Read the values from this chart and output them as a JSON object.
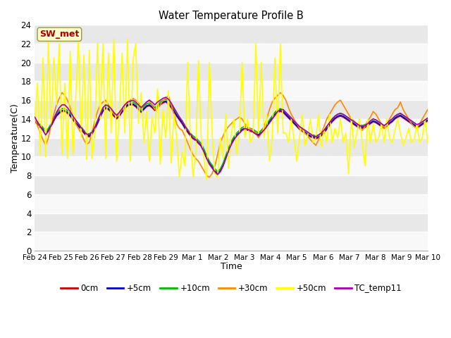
{
  "title": "Water Temperature Profile B",
  "xlabel": "Time",
  "ylabel": "Temperature(C)",
  "ylim": [
    0,
    24
  ],
  "yticks": [
    0,
    2,
    4,
    6,
    8,
    10,
    12,
    14,
    16,
    18,
    20,
    22,
    24
  ],
  "xtick_labels": [
    "Feb 24",
    "Feb 25",
    "Feb 26",
    "Feb 27",
    "Feb 28",
    "Feb 29",
    "Mar 1",
    "Mar 2",
    "Mar 3",
    "Mar 4",
    "Mar 5",
    "Mar 6",
    "Mar 7",
    "Mar 8",
    "Mar 9",
    "Mar 10"
  ],
  "fig_bg_color": "#ffffff",
  "plot_bg_color": "#e8e8e8",
  "alt_band_color": "#f8f8f8",
  "series_colors": {
    "0cm": "#cc0000",
    "+5cm": "#0000cc",
    "+10cm": "#00bb00",
    "+30cm": "#ff8800",
    "+50cm": "#ffff00",
    "TC_temp11": "#aa00aa"
  },
  "sw_met_label": "SW_met",
  "sw_met_color": "#aa0000",
  "sw_met_bg": "#ffffcc",
  "sw_met_edge": "#999944",
  "legend_labels": [
    "0cm",
    "+5cm",
    "+10cm",
    "+30cm",
    "+50cm",
    "TC_temp11"
  ],
  "n_points": 145,
  "0cm": [
    13.8,
    13.4,
    13.1,
    12.8,
    12.4,
    12.7,
    13.2,
    13.8,
    14.3,
    14.6,
    14.8,
    14.8,
    14.6,
    14.3,
    13.9,
    13.5,
    13.2,
    12.9,
    12.5,
    12.2,
    12.1,
    12.4,
    12.9,
    13.5,
    14.2,
    14.8,
    15.1,
    15.0,
    14.7,
    14.3,
    14.0,
    14.3,
    14.7,
    15.1,
    15.4,
    15.5,
    15.5,
    15.3,
    15.0,
    14.7,
    15.0,
    15.3,
    15.4,
    15.2,
    14.9,
    15.2,
    15.5,
    15.7,
    15.8,
    15.6,
    15.2,
    14.8,
    14.3,
    13.9,
    13.5,
    13.0,
    12.6,
    12.2,
    11.9,
    11.7,
    11.4,
    11.1,
    10.5,
    9.8,
    9.2,
    8.8,
    8.4,
    8.1,
    8.4,
    9.0,
    9.8,
    10.6,
    11.3,
    11.8,
    12.2,
    12.5,
    12.8,
    12.9,
    12.8,
    12.7,
    12.6,
    12.4,
    12.2,
    12.5,
    12.8,
    13.2,
    13.6,
    14.0,
    14.4,
    14.7,
    14.8,
    14.7,
    14.4,
    14.1,
    13.8,
    13.5,
    13.2,
    12.9,
    12.7,
    12.5,
    12.3,
    12.1,
    12.0,
    11.9,
    12.0,
    12.2,
    12.5,
    12.9,
    13.3,
    13.7,
    14.0,
    14.2,
    14.3,
    14.2,
    14.0,
    13.8,
    13.6,
    13.4,
    13.2,
    13.1,
    13.0,
    13.1,
    13.3,
    13.5,
    13.7,
    13.6,
    13.4,
    13.2,
    13.0,
    13.2,
    13.5,
    13.7,
    14.0,
    14.2,
    14.3,
    14.1,
    13.9,
    13.7,
    13.5,
    13.3,
    13.1,
    13.2,
    13.4,
    13.6,
    13.8
  ],
  "+5cm": [
    13.9,
    13.5,
    13.2,
    12.9,
    12.5,
    12.8,
    13.3,
    13.9,
    14.4,
    14.7,
    14.9,
    14.9,
    14.7,
    14.4,
    14.0,
    13.6,
    13.3,
    13.0,
    12.6,
    12.3,
    12.2,
    12.5,
    13.0,
    13.6,
    14.3,
    14.9,
    15.2,
    15.1,
    14.8,
    14.4,
    14.1,
    14.4,
    14.8,
    15.2,
    15.5,
    15.6,
    15.6,
    15.4,
    15.1,
    14.8,
    15.1,
    15.4,
    15.5,
    15.3,
    15.0,
    15.3,
    15.6,
    15.8,
    15.9,
    15.7,
    15.3,
    14.9,
    14.4,
    14.0,
    13.6,
    13.1,
    12.7,
    12.3,
    12.0,
    11.8,
    11.5,
    11.2,
    10.6,
    9.9,
    9.3,
    8.9,
    8.5,
    8.2,
    8.5,
    9.1,
    9.9,
    10.7,
    11.4,
    11.9,
    12.3,
    12.6,
    12.9,
    13.0,
    12.9,
    12.8,
    12.7,
    12.5,
    12.3,
    12.6,
    12.9,
    13.3,
    13.7,
    14.1,
    14.5,
    14.8,
    14.9,
    14.8,
    14.5,
    14.2,
    13.9,
    13.6,
    13.3,
    13.0,
    12.8,
    12.6,
    12.4,
    12.2,
    12.1,
    12.0,
    12.1,
    12.3,
    12.6,
    13.0,
    13.4,
    13.8,
    14.1,
    14.3,
    14.4,
    14.3,
    14.1,
    13.9,
    13.7,
    13.5,
    13.3,
    13.2,
    13.1,
    13.2,
    13.4,
    13.6,
    13.8,
    13.7,
    13.5,
    13.3,
    13.1,
    13.3,
    13.6,
    13.8,
    14.1,
    14.3,
    14.4,
    14.2,
    14.0,
    13.8,
    13.6,
    13.4,
    13.2,
    13.3,
    13.5,
    13.7,
    13.9
  ],
  "+10cm": [
    14.0,
    13.7,
    13.4,
    13.1,
    12.7,
    13.0,
    13.5,
    14.1,
    14.6,
    14.9,
    15.1,
    15.1,
    14.9,
    14.6,
    14.2,
    13.8,
    13.5,
    13.2,
    12.8,
    12.5,
    12.4,
    12.7,
    13.2,
    13.8,
    14.5,
    15.1,
    15.4,
    15.3,
    15.0,
    14.6,
    14.3,
    14.6,
    15.0,
    15.4,
    15.7,
    15.8,
    15.8,
    15.6,
    15.3,
    15.0,
    15.3,
    15.6,
    15.7,
    15.5,
    15.2,
    15.5,
    15.8,
    16.0,
    16.1,
    15.9,
    15.5,
    15.1,
    14.6,
    14.2,
    13.8,
    13.3,
    12.9,
    12.5,
    12.2,
    12.0,
    11.7,
    11.4,
    10.8,
    10.1,
    9.5,
    9.1,
    8.7,
    8.4,
    8.7,
    9.3,
    10.1,
    10.9,
    11.6,
    12.1,
    12.5,
    12.8,
    13.1,
    13.2,
    13.1,
    13.0,
    12.9,
    12.7,
    12.5,
    12.8,
    13.1,
    13.5,
    13.9,
    14.3,
    14.7,
    15.0,
    15.1,
    15.0,
    14.7,
    14.4,
    14.1,
    13.8,
    13.5,
    13.2,
    13.0,
    12.8,
    12.6,
    12.4,
    12.3,
    12.2,
    12.3,
    12.5,
    12.8,
    13.2,
    13.6,
    14.0,
    14.3,
    14.5,
    14.6,
    14.5,
    14.3,
    14.1,
    13.9,
    13.7,
    13.5,
    13.4,
    13.3,
    13.4,
    13.6,
    13.8,
    14.0,
    13.9,
    13.7,
    13.5,
    13.3,
    13.5,
    13.8,
    14.0,
    14.3,
    14.5,
    14.6,
    14.4,
    14.2,
    14.0,
    13.8,
    13.6,
    13.4,
    13.5,
    13.7,
    13.9,
    14.1
  ],
  "+30cm": [
    14.2,
    13.3,
    12.5,
    11.8,
    11.2,
    12.0,
    13.3,
    14.5,
    15.5,
    16.2,
    16.8,
    16.5,
    16.0,
    15.2,
    14.3,
    13.5,
    13.0,
    12.5,
    11.8,
    11.3,
    11.5,
    12.5,
    13.8,
    14.8,
    15.5,
    15.8,
    16.0,
    15.5,
    15.0,
    14.5,
    14.2,
    14.5,
    15.0,
    15.5,
    15.8,
    16.0,
    16.2,
    16.0,
    15.7,
    15.3,
    15.5,
    15.8,
    16.0,
    15.5,
    15.0,
    15.2,
    15.5,
    16.0,
    16.2,
    16.5,
    15.5,
    14.5,
    13.5,
    13.0,
    12.8,
    12.2,
    11.5,
    10.8,
    10.2,
    9.8,
    9.5,
    9.0,
    8.5,
    8.0,
    7.8,
    8.2,
    9.0,
    10.2,
    11.5,
    12.2,
    12.8,
    13.2,
    13.5,
    13.8,
    14.0,
    14.2,
    14.0,
    13.5,
    13.0,
    13.0,
    12.8,
    12.5,
    12.0,
    12.5,
    13.2,
    14.0,
    15.0,
    15.8,
    16.2,
    16.5,
    16.8,
    16.5,
    16.0,
    15.2,
    14.5,
    14.0,
    13.5,
    13.0,
    12.8,
    12.5,
    12.2,
    11.8,
    11.5,
    11.2,
    11.8,
    12.5,
    13.2,
    14.0,
    14.5,
    15.0,
    15.5,
    15.8,
    16.0,
    15.5,
    15.0,
    14.5,
    14.0,
    13.8,
    13.5,
    13.0,
    12.8,
    13.2,
    13.8,
    14.2,
    14.8,
    14.5,
    14.0,
    13.5,
    13.0,
    13.5,
    14.0,
    14.5,
    15.0,
    15.2,
    15.8,
    15.0,
    14.5,
    14.0,
    13.5,
    13.2,
    13.0,
    13.5,
    14.0,
    14.5,
    15.0
  ],
  "+50cm": [
    13.5,
    17.8,
    10.2,
    20.5,
    10.0,
    22.3,
    13.0,
    20.5,
    15.5,
    22.0,
    10.2,
    17.8,
    9.8,
    21.2,
    10.2,
    16.0,
    22.5,
    12.0,
    20.8,
    9.7,
    21.3,
    9.8,
    12.5,
    22.0,
    14.0,
    22.0,
    9.8,
    21.0,
    12.5,
    22.5,
    9.5,
    14.5,
    21.0,
    12.5,
    22.5,
    9.5,
    20.2,
    22.0,
    13.5,
    16.8,
    11.5,
    14.8,
    9.5,
    14.2,
    12.5,
    17.2,
    9.2,
    15.0,
    12.0,
    17.0,
    9.3,
    14.5,
    12.0,
    7.8,
    10.5,
    9.0,
    20.0,
    12.5,
    7.8,
    10.5,
    20.2,
    12.0,
    9.8,
    7.5,
    20.0,
    12.5,
    8.2,
    7.8,
    12.0,
    9.8,
    14.5,
    8.8,
    12.5,
    14.0,
    10.2,
    12.5,
    20.0,
    12.0,
    14.0,
    11.5,
    12.2,
    22.0,
    12.5,
    20.0,
    12.0,
    14.5,
    9.5,
    12.0,
    20.5,
    12.5,
    22.0,
    12.5,
    12.5,
    11.5,
    14.0,
    11.8,
    9.5,
    12.0,
    14.5,
    11.2,
    12.2,
    14.0,
    11.5,
    12.0,
    14.5,
    11.0,
    13.0,
    11.5,
    14.5,
    11.5,
    13.0,
    12.0,
    14.0,
    11.5,
    12.5,
    8.2,
    14.2,
    11.0,
    12.5,
    14.0,
    11.5,
    9.0,
    14.0,
    11.5,
    13.5,
    11.5,
    12.0,
    13.5,
    11.5,
    14.0,
    12.0,
    11.5,
    12.8,
    14.0,
    12.5,
    11.2,
    12.0,
    13.0,
    11.5,
    11.8,
    13.5,
    11.5,
    12.0,
    14.0,
    11.5
  ],
  "TC_temp11": [
    14.2,
    13.7,
    13.2,
    12.8,
    12.3,
    12.7,
    13.3,
    14.0,
    14.7,
    15.2,
    15.5,
    15.5,
    15.2,
    14.8,
    14.3,
    13.9,
    13.5,
    13.1,
    12.7,
    12.4,
    12.3,
    12.6,
    13.1,
    13.8,
    14.5,
    15.2,
    15.5,
    15.4,
    15.1,
    14.7,
    14.4,
    14.7,
    15.1,
    15.5,
    15.8,
    15.9,
    16.0,
    15.8,
    15.5,
    15.2,
    15.5,
    15.8,
    16.0,
    15.8,
    15.5,
    15.8,
    16.0,
    16.2,
    16.3,
    16.1,
    15.7,
    15.2,
    14.7,
    14.2,
    13.8,
    13.3,
    12.8,
    12.4,
    12.0,
    11.8,
    11.5,
    11.1,
    10.5,
    9.8,
    9.2,
    8.8,
    8.4,
    8.1,
    8.4,
    9.0,
    9.8,
    10.6,
    11.3,
    11.8,
    12.2,
    12.5,
    12.8,
    13.0,
    12.9,
    12.8,
    12.6,
    12.4,
    12.2,
    12.5,
    12.8,
    13.2,
    13.6,
    14.0,
    14.4,
    14.8,
    15.0,
    15.0,
    14.7,
    14.4,
    14.1,
    13.8,
    13.5,
    13.2,
    13.0,
    12.8,
    12.6,
    12.4,
    12.2,
    12.1,
    12.3,
    12.5,
    12.8,
    13.2,
    13.6,
    14.0,
    14.3,
    14.5,
    14.6,
    14.5,
    14.3,
    14.1,
    13.9,
    13.7,
    13.5,
    13.3,
    13.2,
    13.3,
    13.5,
    13.8,
    14.0,
    13.9,
    13.7,
    13.5,
    13.3,
    13.5,
    13.8,
    14.0,
    14.3,
    14.5,
    14.6,
    14.4,
    14.2,
    14.0,
    13.8,
    13.6,
    13.4,
    13.5,
    13.7,
    13.9,
    14.1
  ]
}
